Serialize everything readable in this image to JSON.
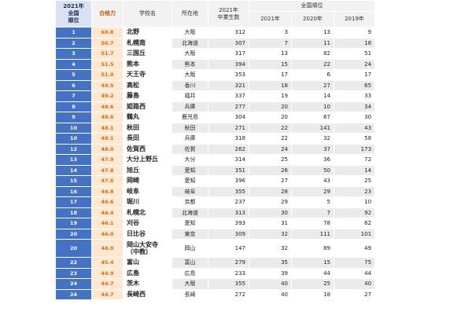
{
  "table": {
    "headers": {
      "rank": "2021年\n全国\n順位",
      "score": "合格力",
      "school": "学校名",
      "location": "所在地",
      "grads": "2021年\n卒業生数",
      "national_rank_group": "全国順位",
      "y2021": "2021年",
      "y2020": "2020年",
      "y2019": "2019年"
    },
    "rows": [
      {
        "rank": "1",
        "score": "60.8",
        "school": "北野",
        "pref": "大阪",
        "grads": "312",
        "r2021": "3",
        "r2020": "13",
        "r2019": "9"
      },
      {
        "rank": "2",
        "score": "56.7",
        "school": "札幌南",
        "pref": "北海道",
        "grads": "307",
        "r2021": "7",
        "r2020": "11",
        "r2019": "18"
      },
      {
        "rank": "3",
        "score": "51.7",
        "school": "三国丘",
        "pref": "大阪",
        "grads": "317",
        "r2021": "13",
        "r2020": "82",
        "r2019": "51"
      },
      {
        "rank": "4",
        "score": "51.5",
        "school": "熊本",
        "pref": "熊本",
        "grads": "394",
        "r2021": "15",
        "r2020": "22",
        "r2019": "24"
      },
      {
        "rank": "5",
        "score": "51.0",
        "school": "天王寺",
        "pref": "大阪",
        "grads": "353",
        "r2021": "17",
        "r2020": "6",
        "r2019": "17"
      },
      {
        "rank": "6",
        "score": "49.5",
        "school": "高松",
        "pref": "香川",
        "grads": "321",
        "r2021": "18",
        "r2020": "27",
        "r2019": "65"
      },
      {
        "rank": "7",
        "score": "49.2",
        "school": "藤島",
        "pref": "福井",
        "grads": "337",
        "r2021": "19",
        "r2020": "14",
        "r2019": "33"
      },
      {
        "rank": "8",
        "score": "48.6",
        "school": "姫路西",
        "pref": "兵庫",
        "grads": "277",
        "r2021": "20",
        "r2020": "10",
        "r2019": "34"
      },
      {
        "rank": "9",
        "score": "48.6",
        "school": "鶴丸",
        "pref": "鹿児島",
        "grads": "304",
        "r2021": "20",
        "r2020": "67",
        "r2019": "30"
      },
      {
        "rank": "10",
        "score": "48.1",
        "school": "秋田",
        "pref": "秋田",
        "grads": "271",
        "r2021": "22",
        "r2020": "141",
        "r2019": "43"
      },
      {
        "rank": "10",
        "score": "48.1",
        "school": "長田",
        "pref": "兵庫",
        "grads": "318",
        "r2021": "22",
        "r2020": "32",
        "r2019": "58"
      },
      {
        "rank": "12",
        "score": "48.0",
        "school": "佐賀西",
        "pref": "佐賀",
        "grads": "262",
        "r2021": "24",
        "r2020": "37",
        "r2019": "173"
      },
      {
        "rank": "13",
        "score": "47.9",
        "school": "大分上野丘",
        "pref": "大分",
        "grads": "314",
        "r2021": "25",
        "r2020": "36",
        "r2019": "72"
      },
      {
        "rank": "14",
        "score": "47.8",
        "school": "旭丘",
        "pref": "愛知",
        "grads": "351",
        "r2021": "26",
        "r2020": "50",
        "r2019": "14"
      },
      {
        "rank": "15",
        "score": "47.6",
        "school": "岡崎",
        "pref": "愛知",
        "grads": "396",
        "r2021": "27",
        "r2020": "43",
        "r2019": "25"
      },
      {
        "rank": "16",
        "score": "46.8",
        "school": "岐阜",
        "pref": "岐阜",
        "grads": "355",
        "r2021": "28",
        "r2020": "29",
        "r2019": "23"
      },
      {
        "rank": "17",
        "score": "46.6",
        "school": "堀川",
        "pref": "京都",
        "grads": "237",
        "r2021": "29",
        "r2020": "5",
        "r2019": "10"
      },
      {
        "rank": "18",
        "score": "46.4",
        "school": "札幌北",
        "pref": "北海道",
        "grads": "313",
        "r2021": "30",
        "r2020": "7",
        "r2019": "92"
      },
      {
        "rank": "19",
        "score": "46.1",
        "school": "刈谷",
        "pref": "愛知",
        "grads": "393",
        "r2021": "31",
        "r2020": "78",
        "r2019": "62"
      },
      {
        "rank": "20",
        "score": "46.0",
        "school": "日比谷",
        "pref": "東京",
        "grads": "309",
        "r2021": "32",
        "r2020": "111",
        "r2019": "101"
      },
      {
        "rank": "20",
        "score": "46.0",
        "school": "岡山大安寺\n（中教）",
        "pref": "岡山",
        "grads": "147",
        "r2021": "32",
        "r2020": "89",
        "r2019": "49",
        "tall": true
      },
      {
        "rank": "22",
        "score": "45.4",
        "school": "富山",
        "pref": "富山",
        "grads": "279",
        "r2021": "35",
        "r2020": "15",
        "r2019": "75"
      },
      {
        "rank": "23",
        "score": "44.9",
        "school": "広島",
        "pref": "広島",
        "grads": "233",
        "r2021": "39",
        "r2020": "44",
        "r2019": "44"
      },
      {
        "rank": "24",
        "score": "44.7",
        "school": "茨木",
        "pref": "大阪",
        "grads": "355",
        "r2021": "40",
        "r2020": "25",
        "r2019": "40"
      },
      {
        "rank": "24",
        "score": "44.7",
        "school": "長崎西",
        "pref": "長崎",
        "grads": "272",
        "r2021": "40",
        "r2020": "18",
        "r2019": "27"
      }
    ]
  }
}
